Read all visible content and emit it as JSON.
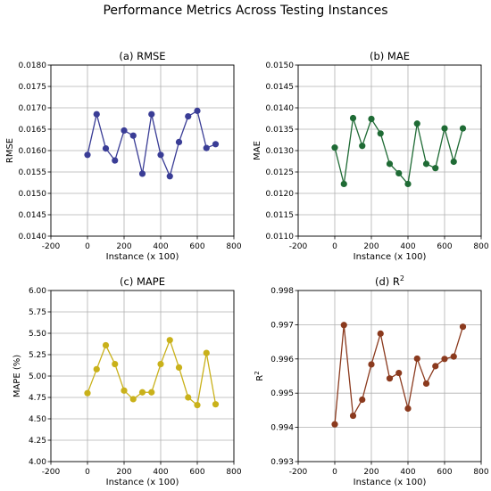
{
  "figure": {
    "title": "Performance Metrics Across Testing Instances"
  },
  "chart_data": [
    {
      "type": "line",
      "title": "(a) RMSE",
      "xlabel": "Instance (x 100)",
      "ylabel": "RMSE",
      "x": [
        0,
        50,
        100,
        150,
        200,
        250,
        300,
        350,
        400,
        450,
        500,
        550,
        600,
        650,
        700
      ],
      "series": [
        {
          "values": [
            0.0159,
            0.01685,
            0.01605,
            0.01577,
            0.01647,
            0.01635,
            0.01546,
            0.01685,
            0.0159,
            0.0154,
            0.0162,
            0.0168,
            0.01693,
            0.01606,
            0.01615
          ]
        }
      ],
      "color": "#3a3d96",
      "xlim": [
        -200,
        800
      ],
      "ylim": [
        0.014,
        0.018
      ],
      "xticks": [
        -200,
        0,
        200,
        400,
        600,
        800
      ],
      "xtick_labels": [
        "-200",
        "0",
        "200",
        "400",
        "600",
        "800"
      ],
      "yticks": [
        0.014,
        0.0145,
        0.015,
        0.0155,
        0.016,
        0.0165,
        0.017,
        0.0175,
        0.018
      ],
      "ytick_labels": [
        "0.0140",
        "0.0145",
        "0.0150",
        "0.0155",
        "0.0160",
        "0.0165",
        "0.0170",
        "0.0175",
        "0.0180"
      ],
      "grid": true
    },
    {
      "type": "line",
      "title": "(b) MAE",
      "xlabel": "Instance (x 100)",
      "ylabel": "MAE",
      "x": [
        0,
        50,
        100,
        150,
        200,
        250,
        300,
        350,
        400,
        450,
        500,
        550,
        600,
        650,
        700
      ],
      "series": [
        {
          "values": [
            0.01307,
            0.01222,
            0.01376,
            0.01311,
            0.01374,
            0.0134,
            0.01269,
            0.01247,
            0.01222,
            0.01363,
            0.01269,
            0.01259,
            0.01352,
            0.01274,
            0.01352
          ]
        }
      ],
      "color": "#1f6b35",
      "xlim": [
        -200,
        800
      ],
      "ylim": [
        0.011,
        0.015
      ],
      "xticks": [
        -200,
        0,
        200,
        400,
        600,
        800
      ],
      "xtick_labels": [
        "-200",
        "0",
        "200",
        "400",
        "600",
        "800"
      ],
      "yticks": [
        0.011,
        0.0115,
        0.012,
        0.0125,
        0.013,
        0.0135,
        0.014,
        0.0145,
        0.015
      ],
      "ytick_labels": [
        "0.0110",
        "0.0115",
        "0.0120",
        "0.0125",
        "0.0130",
        "0.0135",
        "0.0140",
        "0.0145",
        "0.0150"
      ],
      "grid": true
    },
    {
      "type": "line",
      "title": "(c) MAPE",
      "xlabel": "Instance (x 100)",
      "ylabel": "MAPE (%)",
      "x": [
        0,
        50,
        100,
        150,
        200,
        250,
        300,
        350,
        400,
        450,
        500,
        550,
        600,
        650,
        700
      ],
      "series": [
        {
          "values": [
            4.8,
            5.08,
            5.36,
            5.14,
            4.83,
            4.73,
            4.81,
            4.81,
            5.14,
            5.42,
            5.1,
            4.75,
            4.66,
            5.27,
            4.67
          ]
        }
      ],
      "color": "#c9b11a",
      "xlim": [
        -200,
        800
      ],
      "ylim": [
        4.0,
        6.0
      ],
      "xticks": [
        -200,
        0,
        200,
        400,
        600,
        800
      ],
      "xtick_labels": [
        "-200",
        "0",
        "200",
        "400",
        "600",
        "800"
      ],
      "yticks": [
        4.0,
        4.25,
        4.5,
        4.75,
        5.0,
        5.25,
        5.5,
        5.75,
        6.0
      ],
      "ytick_labels": [
        "4.00",
        "4.25",
        "4.50",
        "4.75",
        "5.00",
        "5.25",
        "5.50",
        "5.75",
        "6.00"
      ],
      "grid": true
    },
    {
      "type": "line",
      "title": "(d) R",
      "title_superscript": "2",
      "xlabel": "Instance (x 100)",
      "ylabel": "R",
      "ylabel_superscript": "2",
      "x": [
        0,
        50,
        100,
        150,
        200,
        250,
        300,
        350,
        400,
        450,
        500,
        550,
        600,
        650,
        700
      ],
      "series": [
        {
          "values": [
            0.99409,
            0.99699,
            0.99434,
            0.99481,
            0.99584,
            0.99674,
            0.99543,
            0.99559,
            0.99455,
            0.99601,
            0.99528,
            0.99579,
            0.996,
            0.99607,
            0.99694
          ]
        }
      ],
      "color": "#8b3a1e",
      "xlim": [
        -200,
        800
      ],
      "ylim": [
        0.993,
        0.998
      ],
      "xticks": [
        -200,
        0,
        200,
        400,
        600,
        800
      ],
      "xtick_labels": [
        "-200",
        "0",
        "200",
        "400",
        "600",
        "800"
      ],
      "yticks": [
        0.993,
        0.994,
        0.995,
        0.996,
        0.997,
        0.998
      ],
      "ytick_labels": [
        "0.993",
        "0.994",
        "0.995",
        "0.996",
        "0.997",
        "0.998"
      ],
      "grid": true
    }
  ]
}
